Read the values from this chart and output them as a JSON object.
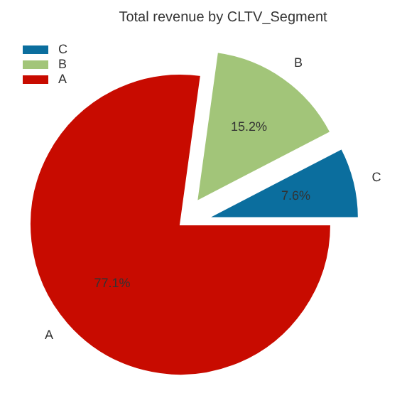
{
  "chart_data": {
    "type": "pie",
    "title": "Total revenue by CLTV_Segment",
    "categories": [
      "C",
      "B",
      "A"
    ],
    "values": [
      7.6,
      15.2,
      77.1
    ],
    "value_labels": [
      "7.6%",
      "15.2%",
      "77.1%"
    ],
    "colors": [
      "#0b6e9e",
      "#a2c579",
      "#c80b00"
    ],
    "legend": "top left"
  }
}
